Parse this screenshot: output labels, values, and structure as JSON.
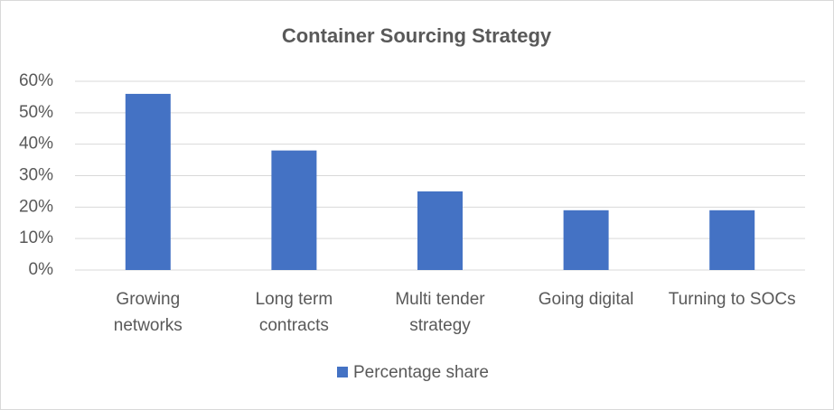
{
  "chart_data": {
    "type": "bar",
    "title": "Container Sourcing Strategy",
    "categories": [
      "Growing networks",
      "Long term contracts",
      "Multi tender strategy",
      "Going digital",
      "Turning to SOCs"
    ],
    "series": [
      {
        "name": "Percentage share",
        "color": "#4472c4",
        "values": [
          56,
          38,
          25,
          19,
          19
        ]
      }
    ],
    "ylim": [
      0,
      60
    ],
    "yticks": [
      {
        "value": 0,
        "label": "0%"
      },
      {
        "value": 10,
        "label": "10%"
      },
      {
        "value": 20,
        "label": "20%"
      },
      {
        "value": 30,
        "label": "30%"
      },
      {
        "value": 40,
        "label": "40%"
      },
      {
        "value": 50,
        "label": "50%"
      },
      {
        "value": 60,
        "label": "60%"
      }
    ],
    "grid": true,
    "legend": "bottom"
  }
}
